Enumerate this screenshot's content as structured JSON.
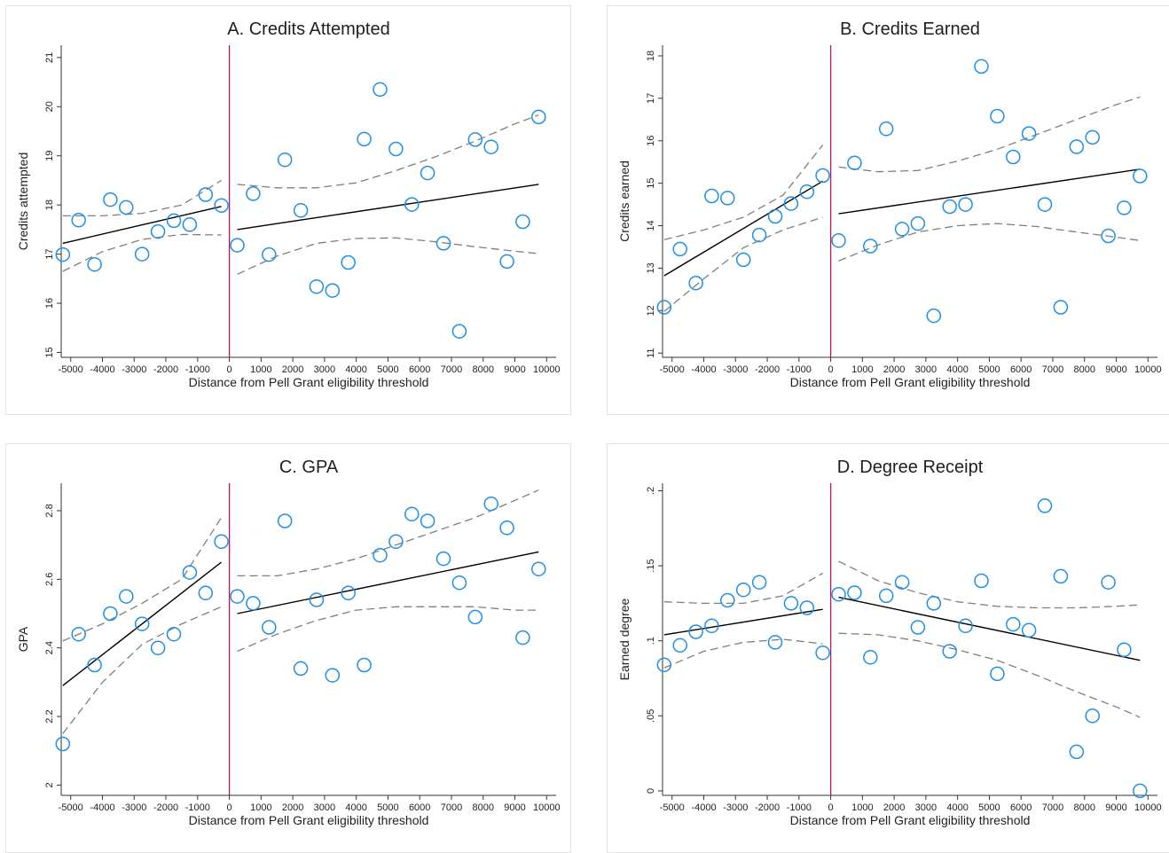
{
  "chart_data": [
    {
      "type": "scatter",
      "title": "A. Credits Attempted",
      "xlabel": "Distance from Pell Grant eligibility threshold",
      "ylabel": "Credits attempted",
      "xlim": [
        -5300,
        10300
      ],
      "ylim": [
        14.9,
        21.25
      ],
      "xticks": [
        -5000,
        -4000,
        -3000,
        -2000,
        -1000,
        0,
        1000,
        2000,
        3000,
        4000,
        5000,
        6000,
        7000,
        8000,
        9000,
        10000
      ],
      "yticks": [
        15,
        16,
        17,
        18,
        19,
        20,
        21
      ],
      "ytick_labels": [
        "15",
        "16",
        "17",
        "18",
        "19",
        "20",
        "21"
      ],
      "ytick_rotation": "vertical",
      "threshold": 0,
      "points": [
        [
          -5250,
          16.99
        ],
        [
          -4750,
          17.69
        ],
        [
          -4250,
          16.79
        ],
        [
          -3750,
          18.11
        ],
        [
          -3250,
          17.95
        ],
        [
          -2750,
          17.0
        ],
        [
          -2250,
          17.46
        ],
        [
          -1750,
          17.68
        ],
        [
          -1250,
          17.6
        ],
        [
          -750,
          18.21
        ],
        [
          -250,
          17.99
        ],
        [
          250,
          17.18
        ],
        [
          750,
          18.23
        ],
        [
          1250,
          16.99
        ],
        [
          1750,
          18.92
        ],
        [
          2250,
          17.89
        ],
        [
          2750,
          16.34
        ],
        [
          3250,
          16.26
        ],
        [
          3750,
          16.83
        ],
        [
          4250,
          19.34
        ],
        [
          4750,
          20.35
        ],
        [
          5250,
          19.14
        ],
        [
          5750,
          18.01
        ],
        [
          6250,
          18.65
        ],
        [
          6750,
          17.22
        ],
        [
          7250,
          15.43
        ],
        [
          7750,
          19.33
        ],
        [
          8250,
          19.18
        ],
        [
          8750,
          16.85
        ],
        [
          9250,
          17.66
        ],
        [
          9750,
          19.79
        ]
      ],
      "fit_left": [
        [
          -5250,
          17.22
        ],
        [
          -250,
          17.97
        ]
      ],
      "fit_right": [
        [
          250,
          17.5
        ],
        [
          9750,
          18.42
        ]
      ],
      "ci_left_upper": [
        [
          -5250,
          17.78
        ],
        [
          -4000,
          17.78
        ],
        [
          -2750,
          17.83
        ],
        [
          -1500,
          18.0
        ],
        [
          -250,
          18.5
        ]
      ],
      "ci_left_lower": [
        [
          -5250,
          16.65
        ],
        [
          -4000,
          17.05
        ],
        [
          -2750,
          17.3
        ],
        [
          -1500,
          17.4
        ],
        [
          -250,
          17.39
        ]
      ],
      "ci_right_upper": [
        [
          250,
          18.42
        ],
        [
          1500,
          18.35
        ],
        [
          2750,
          18.35
        ],
        [
          4000,
          18.45
        ],
        [
          5250,
          18.7
        ],
        [
          6500,
          18.98
        ],
        [
          7750,
          19.3
        ],
        [
          9000,
          19.65
        ],
        [
          9750,
          19.83
        ]
      ],
      "ci_right_lower": [
        [
          250,
          16.59
        ],
        [
          1500,
          16.96
        ],
        [
          2750,
          17.22
        ],
        [
          4000,
          17.32
        ],
        [
          5250,
          17.33
        ],
        [
          6500,
          17.25
        ],
        [
          7750,
          17.15
        ],
        [
          9000,
          17.06
        ],
        [
          9750,
          17.01
        ]
      ]
    },
    {
      "type": "scatter",
      "title": "B. Credits Earned",
      "xlabel": "Distance from Pell Grant eligibility threshold",
      "ylabel": "Credits earned",
      "xlim": [
        -5300,
        10300
      ],
      "ylim": [
        10.9,
        18.25
      ],
      "xticks": [
        -5000,
        -4000,
        -3000,
        -2000,
        -1000,
        0,
        1000,
        2000,
        3000,
        4000,
        5000,
        6000,
        7000,
        8000,
        9000,
        10000
      ],
      "yticks": [
        11,
        12,
        13,
        14,
        15,
        16,
        17,
        18
      ],
      "ytick_labels": [
        "11",
        "12",
        "13",
        "14",
        "15",
        "16",
        "17",
        "18"
      ],
      "ytick_rotation": "vertical",
      "threshold": 0,
      "points": [
        [
          -5250,
          12.08
        ],
        [
          -4750,
          13.45
        ],
        [
          -4250,
          12.65
        ],
        [
          -3750,
          14.7
        ],
        [
          -3250,
          14.65
        ],
        [
          -2750,
          13.2
        ],
        [
          -2250,
          13.78
        ],
        [
          -1750,
          14.22
        ],
        [
          -1250,
          14.52
        ],
        [
          -750,
          14.8
        ],
        [
          -250,
          15.18
        ],
        [
          250,
          13.65
        ],
        [
          750,
          15.48
        ],
        [
          1250,
          13.52
        ],
        [
          1750,
          16.28
        ],
        [
          2250,
          13.92
        ],
        [
          2750,
          14.05
        ],
        [
          3250,
          11.88
        ],
        [
          3750,
          14.45
        ],
        [
          4250,
          14.5
        ],
        [
          4750,
          17.75
        ],
        [
          5250,
          16.58
        ],
        [
          5750,
          15.62
        ],
        [
          6250,
          16.17
        ],
        [
          6750,
          14.5
        ],
        [
          7250,
          12.08
        ],
        [
          7750,
          15.86
        ],
        [
          8250,
          16.08
        ],
        [
          8750,
          13.76
        ],
        [
          9250,
          14.42
        ],
        [
          9750,
          15.17
        ]
      ],
      "fit_left": [
        [
          -5250,
          12.82
        ],
        [
          -250,
          15.05
        ]
      ],
      "fit_right": [
        [
          250,
          14.28
        ],
        [
          9750,
          15.33
        ]
      ],
      "ci_left_upper": [
        [
          -5250,
          13.67
        ],
        [
          -4000,
          13.9
        ],
        [
          -2750,
          14.2
        ],
        [
          -1500,
          14.72
        ],
        [
          -250,
          15.9
        ]
      ],
      "ci_left_lower": [
        [
          -5250,
          11.98
        ],
        [
          -4000,
          12.75
        ],
        [
          -2750,
          13.48
        ],
        [
          -1500,
          13.9
        ],
        [
          -250,
          14.2
        ]
      ],
      "ci_right_upper": [
        [
          250,
          15.38
        ],
        [
          1500,
          15.27
        ],
        [
          2750,
          15.3
        ],
        [
          4000,
          15.52
        ],
        [
          5250,
          15.8
        ],
        [
          6500,
          16.15
        ],
        [
          7750,
          16.5
        ],
        [
          9000,
          16.85
        ],
        [
          9750,
          17.03
        ]
      ],
      "ci_right_lower": [
        [
          250,
          13.17
        ],
        [
          1500,
          13.55
        ],
        [
          2750,
          13.85
        ],
        [
          4000,
          14.0
        ],
        [
          5250,
          14.05
        ],
        [
          6500,
          13.98
        ],
        [
          7750,
          13.85
        ],
        [
          9000,
          13.73
        ],
        [
          9750,
          13.65
        ]
      ]
    },
    {
      "type": "scatter",
      "title": "C. GPA",
      "xlabel": "Distance from Pell Grant eligibility threshold",
      "ylabel": "GPA",
      "xlim": [
        -5300,
        10300
      ],
      "ylim": [
        1.97,
        2.88
      ],
      "xticks": [
        -5000,
        -4000,
        -3000,
        -2000,
        -1000,
        0,
        1000,
        2000,
        3000,
        4000,
        5000,
        6000,
        7000,
        8000,
        9000,
        10000
      ],
      "yticks": [
        2.0,
        2.2,
        2.4,
        2.6,
        2.8
      ],
      "ytick_labels": [
        "2",
        "2.2",
        "2.4",
        "2.6",
        "2.8"
      ],
      "ytick_rotation": "vertical",
      "threshold": 0,
      "points": [
        [
          -5250,
          2.12
        ],
        [
          -4750,
          2.44
        ],
        [
          -4250,
          2.35
        ],
        [
          -3750,
          2.5
        ],
        [
          -3250,
          2.55
        ],
        [
          -2750,
          2.47
        ],
        [
          -2250,
          2.4
        ],
        [
          -1750,
          2.44
        ],
        [
          -1250,
          2.62
        ],
        [
          -750,
          2.56
        ],
        [
          -250,
          2.71
        ],
        [
          250,
          2.55
        ],
        [
          750,
          2.53
        ],
        [
          1250,
          2.46
        ],
        [
          1750,
          2.77
        ],
        [
          2250,
          2.34
        ],
        [
          2750,
          2.54
        ],
        [
          3250,
          2.32
        ],
        [
          3750,
          2.56
        ],
        [
          4250,
          2.35
        ],
        [
          4750,
          2.67
        ],
        [
          5250,
          2.71
        ],
        [
          5750,
          2.79
        ],
        [
          6250,
          2.77
        ],
        [
          6750,
          2.66
        ],
        [
          7250,
          2.59
        ],
        [
          7750,
          2.49
        ],
        [
          8250,
          2.82
        ],
        [
          8750,
          2.75
        ],
        [
          9250,
          2.43
        ],
        [
          9750,
          2.63
        ]
      ],
      "fit_left": [
        [
          -5250,
          2.29
        ],
        [
          -250,
          2.65
        ]
      ],
      "fit_right": [
        [
          250,
          2.5
        ],
        [
          9750,
          2.68
        ]
      ],
      "ci_left_upper": [
        [
          -5250,
          2.42
        ],
        [
          -4000,
          2.47
        ],
        [
          -2750,
          2.53
        ],
        [
          -1500,
          2.6
        ],
        [
          -250,
          2.78
        ]
      ],
      "ci_left_lower": [
        [
          -5250,
          2.15
        ],
        [
          -4000,
          2.3
        ],
        [
          -2750,
          2.41
        ],
        [
          -1500,
          2.47
        ],
        [
          -250,
          2.52
        ]
      ],
      "ci_right_upper": [
        [
          250,
          2.61
        ],
        [
          1500,
          2.61
        ],
        [
          2750,
          2.63
        ],
        [
          4000,
          2.66
        ],
        [
          5250,
          2.7
        ],
        [
          6500,
          2.74
        ],
        [
          7750,
          2.78
        ],
        [
          9000,
          2.83
        ],
        [
          9750,
          2.86
        ]
      ],
      "ci_right_lower": [
        [
          250,
          2.39
        ],
        [
          1500,
          2.44
        ],
        [
          2750,
          2.48
        ],
        [
          4000,
          2.51
        ],
        [
          5250,
          2.52
        ],
        [
          6500,
          2.52
        ],
        [
          7750,
          2.52
        ],
        [
          9000,
          2.51
        ],
        [
          9750,
          2.51
        ]
      ]
    },
    {
      "type": "scatter",
      "title": "D. Degree Receipt",
      "xlabel": "Distance from Pell Grant eligibility threshold",
      "ylabel": "Earned degree",
      "xlim": [
        -5300,
        10300
      ],
      "ylim": [
        -0.003,
        0.205
      ],
      "xticks": [
        -5000,
        -4000,
        -3000,
        -2000,
        -1000,
        0,
        1000,
        2000,
        3000,
        4000,
        5000,
        6000,
        7000,
        8000,
        9000,
        10000
      ],
      "yticks": [
        0,
        0.05,
        0.1,
        0.15,
        0.2
      ],
      "ytick_labels": [
        "0",
        ".05",
        ".1",
        ".15",
        ".2"
      ],
      "ytick_rotation": "vertical",
      "threshold": 0,
      "points": [
        [
          -5250,
          0.084
        ],
        [
          -4750,
          0.097
        ],
        [
          -4250,
          0.106
        ],
        [
          -3750,
          0.11
        ],
        [
          -3250,
          0.127
        ],
        [
          -2750,
          0.134
        ],
        [
          -2250,
          0.139
        ],
        [
          -1750,
          0.099
        ],
        [
          -1250,
          0.125
        ],
        [
          -750,
          0.122
        ],
        [
          -250,
          0.092
        ],
        [
          250,
          0.131
        ],
        [
          750,
          0.132
        ],
        [
          1250,
          0.089
        ],
        [
          1750,
          0.13
        ],
        [
          2250,
          0.139
        ],
        [
          2750,
          0.109
        ],
        [
          3250,
          0.125
        ],
        [
          3750,
          0.093
        ],
        [
          4250,
          0.11
        ],
        [
          4750,
          0.14
        ],
        [
          5250,
          0.078
        ],
        [
          5750,
          0.111
        ],
        [
          6250,
          0.107
        ],
        [
          6750,
          0.19
        ],
        [
          7250,
          0.143
        ],
        [
          7750,
          0.026
        ],
        [
          8250,
          0.05
        ],
        [
          8750,
          0.139
        ],
        [
          9250,
          0.094
        ],
        [
          9750,
          0.0
        ]
      ],
      "fit_left": [
        [
          -5250,
          0.104
        ],
        [
          -250,
          0.121
        ]
      ],
      "fit_right": [
        [
          250,
          0.129
        ],
        [
          9750,
          0.087
        ]
      ],
      "ci_left_upper": [
        [
          -5250,
          0.126
        ],
        [
          -4000,
          0.125
        ],
        [
          -2750,
          0.125
        ],
        [
          -1500,
          0.13
        ],
        [
          -250,
          0.145
        ]
      ],
      "ci_left_lower": [
        [
          -5250,
          0.082
        ],
        [
          -4000,
          0.093
        ],
        [
          -2750,
          0.099
        ],
        [
          -1500,
          0.101
        ],
        [
          -250,
          0.098
        ]
      ],
      "ci_right_upper": [
        [
          250,
          0.153
        ],
        [
          1500,
          0.14
        ],
        [
          2750,
          0.132
        ],
        [
          4000,
          0.126
        ],
        [
          5250,
          0.123
        ],
        [
          6500,
          0.122
        ],
        [
          7750,
          0.122
        ],
        [
          9000,
          0.123
        ],
        [
          9750,
          0.124
        ]
      ],
      "ci_right_lower": [
        [
          250,
          0.105
        ],
        [
          1500,
          0.104
        ],
        [
          2750,
          0.1
        ],
        [
          4000,
          0.094
        ],
        [
          5250,
          0.087
        ],
        [
          6500,
          0.077
        ],
        [
          7750,
          0.066
        ],
        [
          9000,
          0.056
        ],
        [
          9750,
          0.049
        ]
      ]
    }
  ],
  "colors": {
    "marker": "#1f8fe6",
    "fit": "#000000",
    "ci": "#7f7f7f",
    "threshold": "#b11a5a",
    "axis": "#333333",
    "text": "#1f1f1f"
  }
}
